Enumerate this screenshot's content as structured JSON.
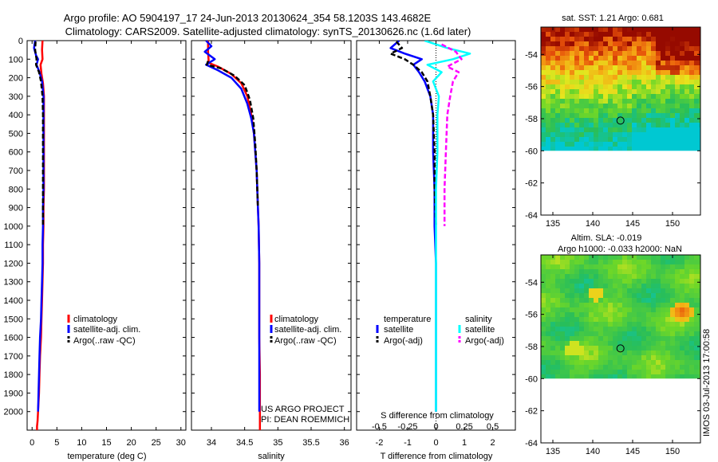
{
  "header": {
    "title_line1": "Argo profile: AO 5904197_17 24-Jun-2013 20130624_354 58.1203S 143.4682E",
    "title_line2": "Climatology: CARS2009. Satellite-adjusted climatology: synTS_20130626.nc (1.6d later)"
  },
  "colors": {
    "climatology": "#ff0000",
    "satellite_temp": "#0000ff",
    "argo": "#000000",
    "satellite_sal": "#00ffff",
    "argo_sal_adj": "#ff00ff"
  },
  "chart_data": [
    {
      "id": "temperature",
      "type": "line",
      "xlabel": "temperature (deg C)",
      "xlim": [
        -1,
        31
      ],
      "xticks": [
        0,
        5,
        10,
        15,
        20,
        25,
        30
      ],
      "ylim": [
        0,
        2100
      ],
      "y_reversed": true,
      "yticks": [
        0,
        100,
        200,
        300,
        400,
        500,
        600,
        700,
        800,
        900,
        1000,
        1100,
        1200,
        1300,
        1400,
        1500,
        1600,
        1700,
        1800,
        1900,
        2000
      ],
      "legend": [
        "climatology",
        "satellite-adj. clim.",
        "Argo(..raw -QC)"
      ],
      "legend_position": "lower-right",
      "series": [
        {
          "name": "climatology",
          "color": "#ff0000",
          "dash": "",
          "x": [
            2.1,
            2.0,
            2.1,
            1.7,
            1.9,
            2.2,
            2.4,
            2.4,
            2.4,
            2.4,
            2.4,
            2.4,
            2.3,
            2.3,
            2.2,
            2.2,
            2.1,
            2.0,
            1.9,
            1.8,
            1.6,
            1.5,
            1.4,
            1.3,
            1.2,
            1.1,
            1.0,
            1.0
          ],
          "y": [
            0,
            50,
            100,
            130,
            180,
            230,
            300,
            400,
            500,
            600,
            700,
            800,
            900,
            1000,
            1100,
            1200,
            1300,
            1400,
            1500,
            1600,
            1700,
            1800,
            1900,
            1950,
            2000,
            2050,
            2080,
            2100
          ]
        },
        {
          "name": "satellite-adj. clim.",
          "color": "#0000ff",
          "dash": "",
          "x": [
            0.6,
            0.4,
            0.8,
            1.2,
            0.9,
            1.5,
            2.0,
            2.3,
            2.3,
            2.3,
            2.3,
            2.3,
            2.3,
            2.2,
            2.2,
            2.1,
            2.1,
            2.0,
            1.9,
            1.8,
            1.6,
            1.5,
            1.4,
            1.3,
            1.2
          ],
          "y": [
            0,
            40,
            80,
            100,
            130,
            170,
            220,
            300,
            400,
            500,
            600,
            700,
            800,
            900,
            1000,
            1100,
            1200,
            1300,
            1400,
            1500,
            1600,
            1700,
            1800,
            1900,
            2000
          ]
        },
        {
          "name": "Argo(..raw -QC)",
          "color": "#000000",
          "dash": "6,3",
          "x": [
            0.7,
            0.6,
            0.9,
            0.8,
            1.4,
            1.8,
            2.1,
            2.2,
            2.2,
            2.2,
            2.2
          ],
          "y": [
            5,
            50,
            100,
            130,
            170,
            220,
            300,
            400,
            600,
            800,
            1000
          ]
        }
      ]
    },
    {
      "id": "salinity",
      "type": "line",
      "xlabel": "salinity",
      "xlim": [
        33.7,
        36.1
      ],
      "xticks": [
        34,
        34.5,
        35,
        35.5,
        36
      ],
      "ylim": [
        0,
        2100
      ],
      "y_reversed": true,
      "legend": [
        "climatology",
        "satellite-adj. clim.",
        "Argo(..raw -QC)"
      ],
      "legend_position": "lower-right",
      "annotation": [
        "US ARGO PROJECT",
        "PI: DEAN ROEMMICH"
      ],
      "series": [
        {
          "name": "climatology",
          "color": "#ff0000",
          "dash": "",
          "x": [
            33.95,
            33.95,
            33.96,
            34.1,
            34.3,
            34.45,
            34.54,
            34.6,
            34.64,
            34.66,
            34.68,
            34.69,
            34.7,
            34.71,
            34.72,
            34.72,
            34.72,
            34.73,
            34.73
          ],
          "y": [
            0,
            60,
            120,
            140,
            180,
            230,
            300,
            400,
            500,
            600,
            700,
            800,
            900,
            1000,
            1200,
            1400,
            1600,
            1800,
            2100
          ]
        },
        {
          "name": "satellite-adj. clim.",
          "color": "#0000ff",
          "dash": "",
          "x": [
            33.92,
            34.0,
            33.9,
            34.05,
            33.92,
            34.1,
            34.3,
            34.45,
            34.54,
            34.6,
            34.64,
            34.66,
            34.68,
            34.69,
            34.7,
            34.71,
            34.72,
            34.72,
            34.72,
            34.72
          ],
          "y": [
            0,
            30,
            60,
            100,
            130,
            160,
            200,
            260,
            340,
            420,
            500,
            600,
            700,
            800,
            900,
            1000,
            1200,
            1400,
            1600,
            2000
          ]
        },
        {
          "name": "Argo(..raw -QC)",
          "color": "#000000",
          "dash": "6,3",
          "x": [
            33.95,
            33.93,
            34.15,
            34.35,
            34.5,
            34.58,
            34.63,
            34.66,
            34.68,
            34.7
          ],
          "y": [
            110,
            130,
            150,
            190,
            240,
            320,
            420,
            560,
            700,
            900
          ]
        }
      ]
    },
    {
      "id": "difference",
      "type": "line",
      "xlabel": "T difference from climatology",
      "xlabel_top": "S difference from climatology",
      "xlim": [
        -2.8,
        2.8
      ],
      "xticks": [
        -2,
        -1,
        0,
        1,
        2
      ],
      "xticks_top_labels": [
        "-0.5",
        "-0.25",
        "0",
        "0.25",
        "0.5"
      ],
      "ylim": [
        0,
        2100
      ],
      "y_reversed": true,
      "legend_groups": [
        {
          "title": "temperature",
          "items": [
            "satellite",
            "Argo(-adj)"
          ]
        },
        {
          "title": "salinity",
          "items": [
            "satellite",
            "Argo(-adj)"
          ]
        }
      ],
      "series": [
        {
          "name": "temperature satellite",
          "color": "#0000ff",
          "dash": "",
          "x": [
            -1.3,
            -1.6,
            -1.1,
            -0.5,
            -0.8,
            -0.6,
            -0.4,
            -0.2,
            -0.1,
            -0.1,
            -0.05,
            -0.05,
            0,
            0,
            0,
            0,
            0
          ],
          "y": [
            0,
            40,
            70,
            100,
            130,
            170,
            220,
            300,
            400,
            600,
            800,
            1000,
            1200,
            1400,
            1600,
            1800,
            2000
          ]
        },
        {
          "name": "temperature Argo(-adj)",
          "color": "#000000",
          "dash": "6,3",
          "x": [
            -1.4,
            -1.2,
            -1.6,
            -1.1,
            -0.8,
            -0.5,
            -0.3,
            -0.2,
            -0.1,
            -0.05,
            -0.05,
            0
          ],
          "y": [
            5,
            40,
            70,
            100,
            130,
            170,
            220,
            300,
            400,
            600,
            800,
            1000
          ]
        },
        {
          "name": "salinity satellite",
          "color": "#00ffff",
          "dash": "",
          "x": [
            -0.4,
            0.4,
            1.2,
            0.6,
            -0.3,
            0.2,
            -0.1,
            0.1,
            0.05,
            0.05,
            0,
            0,
            0,
            0,
            0,
            0
          ],
          "y": [
            0,
            40,
            70,
            100,
            130,
            170,
            220,
            300,
            400,
            600,
            800,
            1000,
            1200,
            1400,
            1600,
            2000
          ]
        },
        {
          "name": "salinity Argo(-adj)",
          "color": "#ff00ff",
          "dash": "6,3",
          "x": [
            0.2,
            0.7,
            0.9,
            0.4,
            0.8,
            0.6,
            0.5,
            0.4,
            0.35,
            0.3,
            0.3
          ],
          "y": [
            20,
            60,
            100,
            140,
            170,
            220,
            300,
            400,
            600,
            800,
            1000
          ]
        }
      ]
    }
  ],
  "maps": {
    "sst": {
      "title": "sat. SST: 1.21 Argo: 0.681",
      "xticks": [
        135,
        140,
        145,
        150
      ],
      "yticks": [
        -54,
        -56,
        -58,
        -60,
        -62,
        -64
      ],
      "xlim": [
        133.5,
        153.5
      ],
      "ylim": [
        -64,
        -52.3
      ],
      "data_ylim": [
        -60,
        -52.3
      ],
      "marker": {
        "lon": 143.47,
        "lat": -58.12
      }
    },
    "sla": {
      "title_line1": "Altim. SLA: -0.019",
      "title_line2": "Argo h1000: -0.033 h2000: NaN",
      "xticks": [
        135,
        140,
        145,
        150
      ],
      "yticks": [
        -54,
        -56,
        -58,
        -60,
        -62,
        -64
      ],
      "xlim": [
        133.5,
        153.5
      ],
      "ylim": [
        -64,
        -52.3
      ],
      "data_ylim": [
        -60,
        -52.3
      ],
      "marker": {
        "lon": 143.47,
        "lat": -58.12
      }
    }
  },
  "footer": {
    "imos_stamp": "IMOS 03-Jul-2013 17:00:58"
  }
}
